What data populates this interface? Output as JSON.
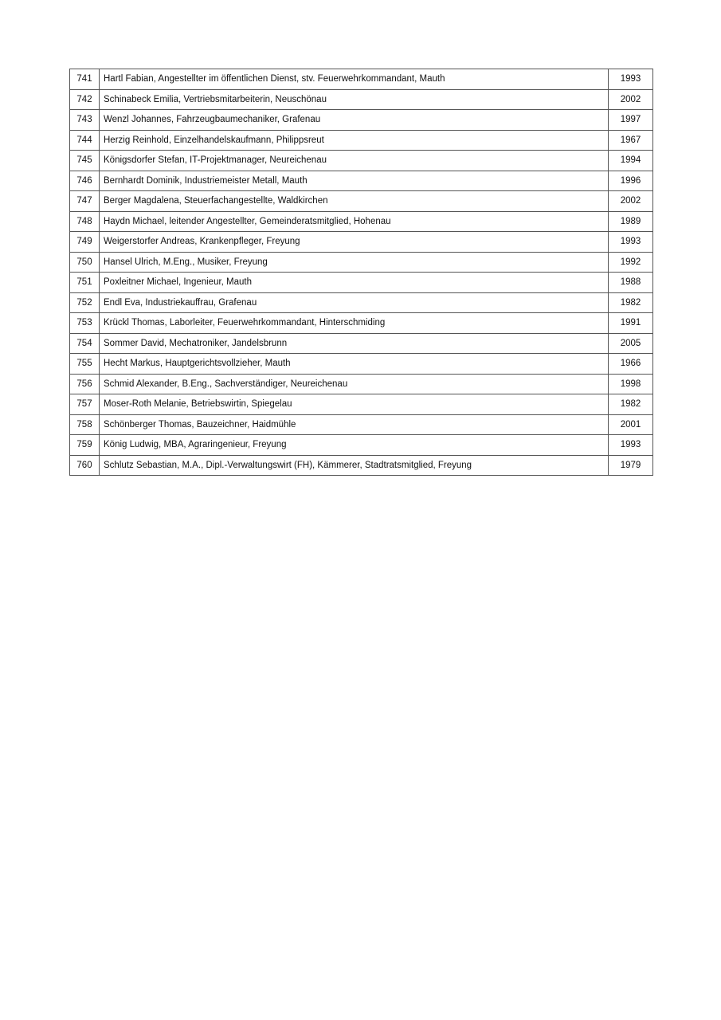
{
  "rows": [
    {
      "no": "741",
      "text": "Hartl Fabian, Angestellter im öffentlichen Dienst, stv. Feuerwehrkommandant, Mauth",
      "year": "1993"
    },
    {
      "no": "742",
      "text": "Schinabeck Emilia, Vertriebsmitarbeiterin, Neuschönau",
      "year": "2002"
    },
    {
      "no": "743",
      "text": "Wenzl Johannes, Fahrzeugbaumechaniker, Grafenau",
      "year": "1997"
    },
    {
      "no": "744",
      "text": "Herzig Reinhold, Einzelhandelskaufmann, Philippsreut",
      "year": "1967"
    },
    {
      "no": "745",
      "text": "Königsdorfer Stefan, IT-Projektmanager, Neureichenau",
      "year": "1994"
    },
    {
      "no": "746",
      "text": "Bernhardt Dominik, Industriemeister Metall, Mauth",
      "year": "1996"
    },
    {
      "no": "747",
      "text": "Berger Magdalena, Steuerfachangestellte, Waldkirchen",
      "year": "2002"
    },
    {
      "no": "748",
      "text": "Haydn Michael, leitender Angestellter, Gemeinderatsmitglied, Hohenau",
      "year": "1989"
    },
    {
      "no": "749",
      "text": "Weigerstorfer Andreas, Krankenpfleger, Freyung",
      "year": "1993"
    },
    {
      "no": "750",
      "text": "Hansel Ulrich, M.Eng., Musiker, Freyung",
      "year": "1992"
    },
    {
      "no": "751",
      "text": "Poxleitner Michael, Ingenieur, Mauth",
      "year": "1988"
    },
    {
      "no": "752",
      "text": "Endl Eva, Industriekauffrau, Grafenau",
      "year": "1982"
    },
    {
      "no": "753",
      "text": "Krückl Thomas, Laborleiter, Feuerwehrkommandant, Hinterschmiding",
      "year": "1991"
    },
    {
      "no": "754",
      "text": "Sommer David, Mechatroniker, Jandelsbrunn",
      "year": "2005"
    },
    {
      "no": "755",
      "text": "Hecht Markus, Hauptgerichtsvollzieher, Mauth",
      "year": "1966"
    },
    {
      "no": "756",
      "text": "Schmid Alexander, B.Eng., Sachverständiger, Neureichenau",
      "year": "1998"
    },
    {
      "no": "757",
      "text": "Moser-Roth Melanie, Betriebswirtin, Spiegelau",
      "year": "1982"
    },
    {
      "no": "758",
      "text": "Schönberger Thomas, Bauzeichner, Haidmühle",
      "year": "2001"
    },
    {
      "no": "759",
      "text": "König Ludwig, MBA, Agraringenieur, Freyung",
      "year": "1993"
    },
    {
      "no": "760",
      "text": "Schlutz Sebastian, M.A., Dipl.-Verwaltungswirt (FH), Kämmerer, Stadtratsmitglied, Freyung",
      "year": "1979"
    }
  ]
}
